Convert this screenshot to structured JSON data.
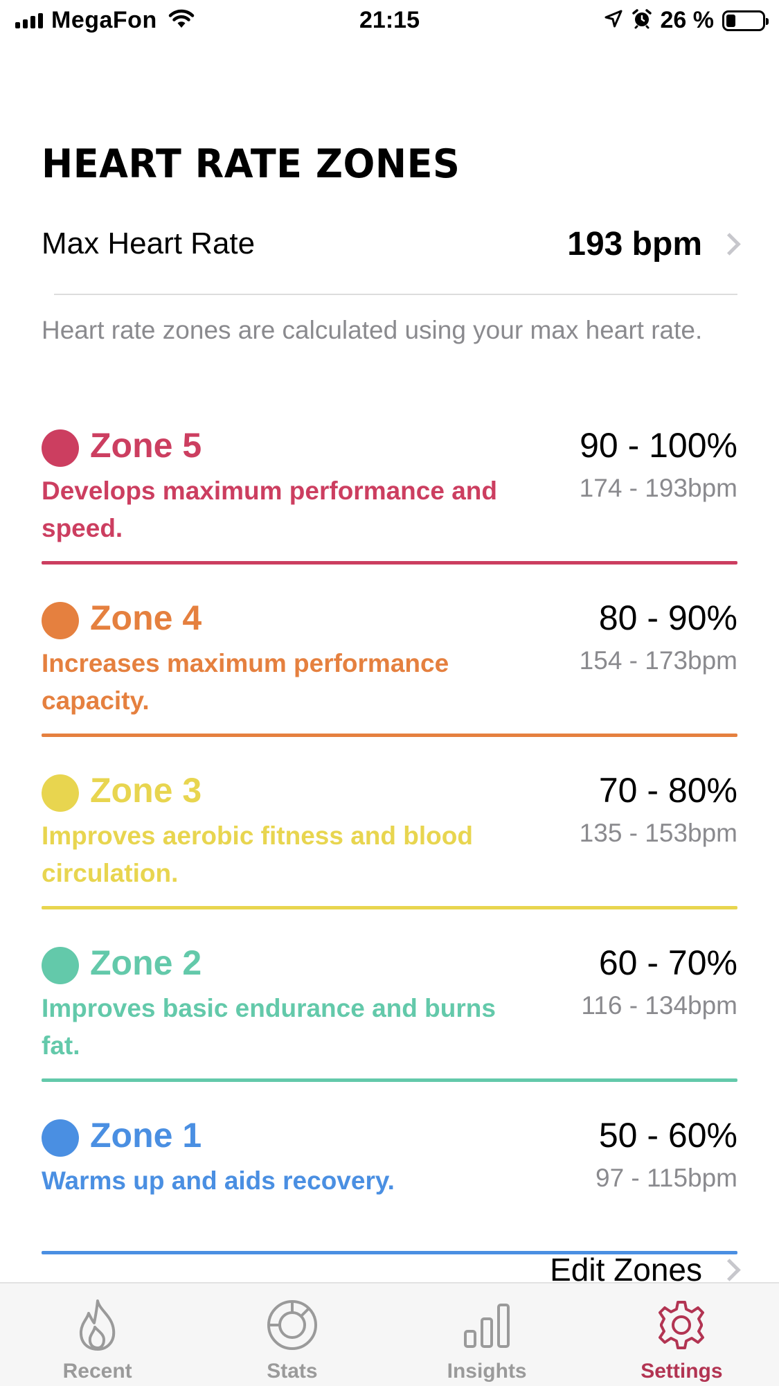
{
  "status_bar": {
    "carrier": "MegaFon",
    "time": "21:15",
    "battery_percent": "26 %",
    "battery_level": 0.26
  },
  "page": {
    "title": "HEART RATE ZONES",
    "max_hr_label": "Max Heart Rate",
    "max_hr_value": "193 bpm",
    "description": "Heart rate zones are calculated using your max heart rate.",
    "edit_zones_label": "Edit Zones"
  },
  "zones": [
    {
      "name": "Zone 5",
      "description": "Develops maximum performance and speed.",
      "percent": "90 - 100%",
      "bpm": "174 - 193bpm",
      "color": "#cc3e60"
    },
    {
      "name": "Zone 4",
      "description": "Increases maximum performance capacity.",
      "percent": "80 - 90%",
      "bpm": "154 - 173bpm",
      "color": "#e5803f"
    },
    {
      "name": "Zone 3",
      "description": "Improves aerobic fitness and blood circulation.",
      "percent": "70 - 80%",
      "bpm": "135 - 153bpm",
      "color": "#e8d54f"
    },
    {
      "name": "Zone 2",
      "description": "Improves basic endurance and burns fat.",
      "percent": "60 - 70%",
      "bpm": "116 - 134bpm",
      "color": "#63c9aa"
    },
    {
      "name": "Zone 1",
      "description": "Warms up and aids recovery.",
      "percent": "50 - 60%",
      "bpm": "97 - 115bpm",
      "color": "#4a8fe2"
    }
  ],
  "tabs": [
    {
      "label": "Recent",
      "icon": "flame-icon",
      "active": false
    },
    {
      "label": "Stats",
      "icon": "gauge-icon",
      "active": false
    },
    {
      "label": "Insights",
      "icon": "bar-chart-icon",
      "active": false
    },
    {
      "label": "Settings",
      "icon": "gear-icon",
      "active": true
    }
  ],
  "colors": {
    "accent": "#b23452",
    "secondary_text": "#8a8a8e",
    "tab_inactive": "#9a9a9a"
  }
}
